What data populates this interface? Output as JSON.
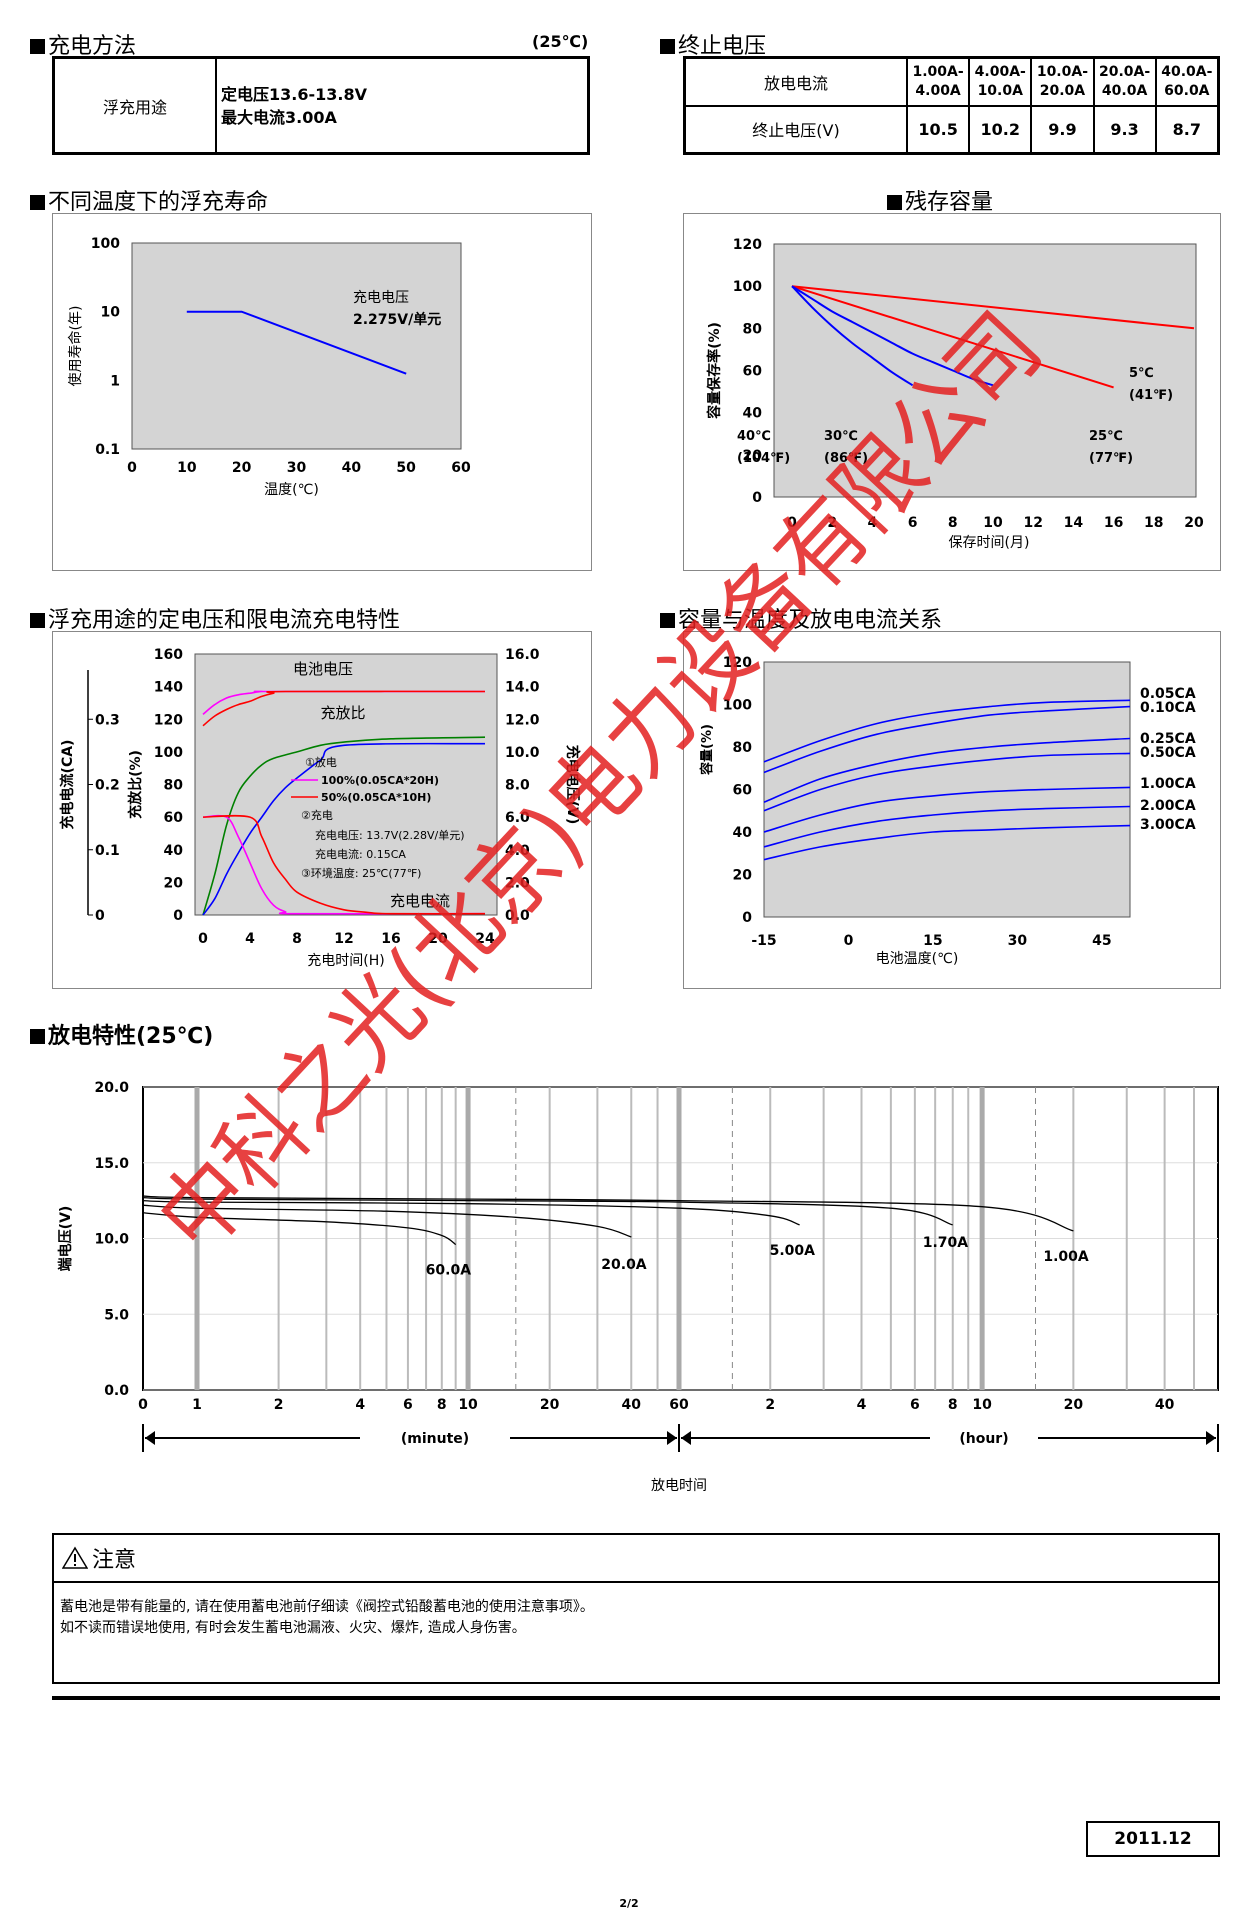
{
  "charge_method": {
    "title": "充电方法",
    "temp_note": "(25℃)",
    "row_label": "浮充用途",
    "line1": "定电压13.6-13.8V",
    "line2": "最大电流3.00A"
  },
  "cutoff_voltage": {
    "title": "终止电压",
    "row1_label": "放电电流",
    "row2_label": "终止电压(V)",
    "currents": [
      [
        "1.00A-",
        "4.00A"
      ],
      [
        "4.00A-",
        "10.0A"
      ],
      [
        "10.0A-",
        "20.0A"
      ],
      [
        "20.0A-",
        "40.0A"
      ],
      [
        "40.0A-",
        "60.0A"
      ]
    ],
    "voltages": [
      "10.5",
      "10.2",
      "9.9",
      "9.3",
      "8.7"
    ]
  },
  "float_life": {
    "title": "不同温度下的浮充寿命",
    "chart_data": {
      "type": "line",
      "ylabel": "使用寿命(年)",
      "xlabel": "温度(℃)",
      "x_ticks": [
        "0",
        "10",
        "20",
        "30",
        "40",
        "50",
        "60"
      ],
      "y_ticks": [
        "100",
        "10",
        "1",
        "0.1"
      ],
      "yscale": "log",
      "xlim": [
        0,
        60
      ],
      "ylim": [
        0.1,
        100
      ],
      "annotation_1": "充电电压",
      "annotation_2": "2.275V/单元",
      "series": [
        {
          "x": [
            10,
            20,
            50
          ],
          "y": [
            10,
            10,
            1.25
          ]
        }
      ]
    }
  },
  "residual": {
    "title": "残存容量",
    "chart_data": {
      "type": "line",
      "ylabel": "容量保存率(%)",
      "xlabel": "保存时间(月)",
      "x_ticks": [
        "0",
        "2",
        "4",
        "6",
        "8",
        "10",
        "12",
        "14",
        "16",
        "18",
        "20"
      ],
      "y_ticks": [
        "120",
        "100",
        "80",
        "60",
        "40",
        "20",
        "0"
      ],
      "xlim": [
        0,
        20
      ],
      "ylim": [
        0,
        120
      ],
      "series": [
        {
          "name": "5℃ (41℉)",
          "label1": "5℃",
          "label2": "(41℉)",
          "color": "#ff0000",
          "x": [
            0,
            20
          ],
          "y": [
            100,
            80
          ]
        },
        {
          "name": "25℃ (77℉)",
          "label1": "25℃",
          "label2": "(77℉)",
          "color": "#ff0000",
          "x": [
            0,
            16
          ],
          "y": [
            100,
            52
          ]
        },
        {
          "name": "30℃ (86℉)",
          "label1": "30℃",
          "label2": "(86℉)",
          "color": "#0000ff",
          "x": [
            0,
            1,
            2,
            3,
            4,
            5,
            6,
            7,
            8,
            9,
            10
          ],
          "y": [
            100,
            94,
            88,
            83,
            78,
            73,
            68,
            64,
            60,
            56,
            53
          ]
        },
        {
          "name": "40℃ (104℉)",
          "label1": "40℃",
          "label2": "(104℉)",
          "color": "#0000ff",
          "x": [
            0,
            1,
            2,
            3,
            4,
            5,
            6
          ],
          "y": [
            100,
            90,
            81,
            73,
            66,
            59,
            53
          ]
        }
      ]
    }
  },
  "float_charge": {
    "title": "浮充用途的定电压和限电流充电特性",
    "chart_data": {
      "type": "line",
      "xlabel": "充电时间(H)",
      "ylabel_left_outer": "充电电流(CA)",
      "ylabel_left_inner": "充放比(%)",
      "ylabel_right": "充电电压(V)",
      "x_ticks": [
        "0",
        "4",
        "8",
        "12",
        "16",
        "20",
        "24"
      ],
      "y_ticks_pct": [
        "160",
        "140",
        "120",
        "100",
        "80",
        "60",
        "40",
        "20",
        "0"
      ],
      "y_ticks_ca": [
        "0.3",
        "0.2",
        "0.1",
        "0"
      ],
      "y_ticks_v": [
        "16.0",
        "14.0",
        "12.0",
        "10.0",
        "8.0",
        "6.0",
        "4.0",
        "2.0",
        "0.0"
      ],
      "xlim": [
        0,
        24
      ],
      "ylim": [
        0,
        160
      ],
      "label_voltage": "电池电压",
      "label_ratio": "充放比",
      "label_current": "充电电流",
      "legend_discharge": "①放电",
      "legend_100": "100%(0.05CA*20H)",
      "legend_50": "50%(0.05CA*10H)",
      "legend_charge": "②充电",
      "legend_charge_v": "充电电压:  13.7V(2.28V/单元)",
      "legend_charge_i": "充电电流:  0.15CA",
      "legend_temp": "③环境温度:  25℃(77℉)",
      "series": [
        {
          "name": "100%",
          "color": "#ff00ff",
          "quantity": "voltage_V",
          "x": [
            0,
            1,
            2,
            3,
            4,
            5,
            6,
            24
          ],
          "y": [
            12.3,
            12.9,
            13.3,
            13.5,
            13.6,
            13.7,
            13.7,
            13.7
          ]
        },
        {
          "name": "50%",
          "color": "#ff0000",
          "quantity": "voltage_V",
          "x": [
            0,
            1,
            2,
            3,
            4,
            5,
            6,
            7,
            24
          ],
          "y": [
            11.6,
            12.2,
            12.6,
            12.9,
            13.1,
            13.4,
            13.6,
            13.7,
            13.7
          ]
        },
        {
          "name": "100%",
          "color": "#008000",
          "quantity": "ratio_pct",
          "x": [
            0,
            1,
            2,
            3,
            4,
            5,
            6,
            8,
            10,
            12,
            16,
            24
          ],
          "y": [
            0,
            25,
            55,
            75,
            85,
            92,
            96,
            100,
            104,
            106,
            108,
            109
          ]
        },
        {
          "name": "50%",
          "color": "#0000ff",
          "quantity": "ratio_pct",
          "x": [
            0,
            1,
            2,
            3,
            4,
            5,
            6,
            7,
            8,
            10,
            12,
            24
          ],
          "y": [
            0,
            10,
            25,
            38,
            50,
            60,
            70,
            78,
            84,
            95,
            104,
            105
          ]
        },
        {
          "name": "100%",
          "color": "#ff00ff",
          "quantity": "current_CA",
          "x": [
            0,
            2,
            3,
            4,
            5,
            6,
            7,
            8,
            24
          ],
          "y": [
            0.15,
            0.15,
            0.12,
            0.08,
            0.04,
            0.015,
            0.005,
            0.002,
            0.002
          ]
        },
        {
          "name": "50%",
          "color": "#ff0000",
          "quantity": "current_CA",
          "x": [
            0,
            4,
            5,
            6,
            7,
            8,
            10,
            12,
            14,
            16,
            24
          ],
          "y": [
            0.15,
            0.15,
            0.12,
            0.08,
            0.055,
            0.035,
            0.018,
            0.008,
            0.004,
            0.002,
            0.002
          ]
        }
      ]
    }
  },
  "cap_temp": {
    "title": "容量与温度及放电电流关系",
    "chart_data": {
      "type": "line",
      "ylabel": "容量(%)",
      "xlabel": "电池温度(℃)",
      "x_ticks": [
        "-15",
        "0",
        "15",
        "30",
        "45"
      ],
      "y_ticks": [
        "120",
        "100",
        "80",
        "60",
        "40",
        "20",
        "0"
      ],
      "xlim": [
        -15,
        50
      ],
      "ylim": [
        0,
        120
      ],
      "series": [
        {
          "name": "0.05CA",
          "x": [
            -15,
            -5,
            5,
            15,
            25,
            35,
            50
          ],
          "y": [
            73,
            83,
            91,
            96,
            99,
            101,
            102
          ]
        },
        {
          "name": "0.10CA",
          "x": [
            -15,
            -5,
            5,
            15,
            25,
            35,
            50
          ],
          "y": [
            68,
            78,
            86,
            91,
            95,
            97,
            99
          ]
        },
        {
          "name": "0.25CA",
          "x": [
            -15,
            -5,
            5,
            15,
            25,
            35,
            50
          ],
          "y": [
            54,
            65,
            72,
            77,
            80,
            82,
            84
          ]
        },
        {
          "name": "0.50CA",
          "x": [
            -15,
            -5,
            5,
            15,
            25,
            35,
            50
          ],
          "y": [
            50,
            60,
            67,
            71,
            74,
            76,
            77
          ]
        },
        {
          "name": "1.00CA",
          "x": [
            -15,
            -5,
            5,
            15,
            25,
            35,
            50
          ],
          "y": [
            40,
            48,
            54,
            57,
            59,
            60,
            61
          ]
        },
        {
          "name": "2.00CA",
          "x": [
            -15,
            -5,
            5,
            15,
            25,
            35,
            50
          ],
          "y": [
            33,
            40,
            45,
            48,
            50,
            51,
            52
          ]
        },
        {
          "name": "3.00CA",
          "x": [
            -15,
            -5,
            5,
            15,
            25,
            35,
            50
          ],
          "y": [
            27,
            33,
            37,
            40,
            41,
            42,
            43
          ]
        }
      ]
    }
  },
  "discharge": {
    "title": "放电特性(25℃)",
    "chart_data": {
      "type": "line",
      "ylabel": "端电压(V)",
      "xlabel": "放电时间",
      "x_ticks_min": [
        "0",
        "1",
        "2",
        "4",
        "6",
        "8",
        "10",
        "20",
        "40",
        "60"
      ],
      "x_ticks_hr": [
        "2",
        "4",
        "6",
        "8",
        "10",
        "20",
        "40"
      ],
      "unit_min": "(minute)",
      "unit_hr": "(hour)",
      "y_ticks": [
        "20.0",
        "15.0",
        "10.0",
        "5.0",
        "0.0"
      ],
      "ylim": [
        0,
        20
      ],
      "x_unit": "minutes (log scale, 0 to 60 minutes then 1 to 60 hours)",
      "series": [
        {
          "name": "60.0A",
          "x": [
            0,
            1,
            3,
            6,
            8,
            9
          ],
          "y": [
            11.7,
            11.4,
            11.1,
            10.7,
            10.2,
            9.6
          ]
        },
        {
          "name": "20.0A",
          "x": [
            0,
            1,
            5,
            15,
            30,
            40
          ],
          "y": [
            12.2,
            12.0,
            11.8,
            11.4,
            10.8,
            10.1
          ]
        },
        {
          "name": "5.00A",
          "x": [
            0,
            1,
            10,
            60,
            120,
            150
          ],
          "y": [
            12.5,
            12.4,
            12.3,
            12.0,
            11.5,
            10.9
          ]
        },
        {
          "name": "1.70A",
          "x": [
            0,
            1,
            10,
            60,
            300,
            480
          ],
          "y": [
            12.7,
            12.6,
            12.5,
            12.4,
            12.0,
            10.9
          ]
        },
        {
          "name": "1.00A",
          "x": [
            0,
            1,
            10,
            60,
            600,
            1200
          ],
          "y": [
            12.8,
            12.7,
            12.6,
            12.5,
            12.1,
            10.5
          ]
        }
      ]
    }
  },
  "notice": {
    "title": "注意",
    "line1": "蓄电池是带有能量的, 请在使用蓄电池前仔细读《阀控式铅酸蓄电池的使用注意事项》。",
    "line2": "如不读而错误地使用, 有时会发生蓄电池漏液、火灾、爆炸,  造成人身伤害。"
  },
  "footer": {
    "date": "2011.12",
    "page": "2/2"
  },
  "watermark": "中科之光(北京)电力设备有限公司"
}
